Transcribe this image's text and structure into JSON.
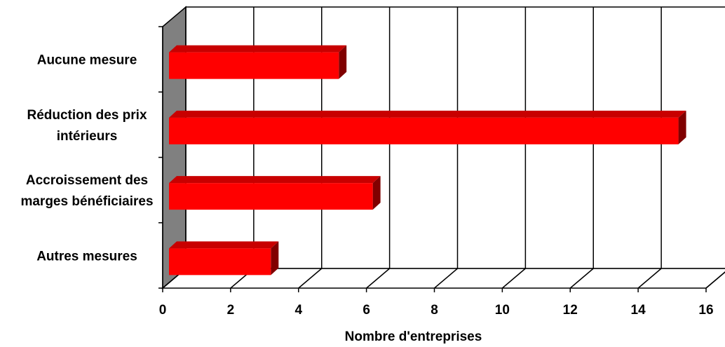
{
  "chart_data": {
    "type": "bar",
    "orientation": "horizontal",
    "style": "3d",
    "categories": [
      [
        "Aucune mesure"
      ],
      [
        "Réduction des prix",
        "intérieurs"
      ],
      [
        "Accroissement des",
        "marges bénéficiaires"
      ],
      [
        "Autres mesures"
      ]
    ],
    "values": [
      5,
      15,
      6,
      3
    ],
    "xlabel": "Nombre d'entreprises",
    "xlim": [
      0,
      16
    ],
    "x_ticks": [
      "0",
      "2",
      "4",
      "6",
      "8",
      "10",
      "12",
      "14",
      "16"
    ],
    "grid": true,
    "colors": {
      "bar_front": "#ff0000",
      "bar_top": "#c80000",
      "bar_side": "#800000",
      "wall": "#808080",
      "grid": "#000000"
    }
  }
}
